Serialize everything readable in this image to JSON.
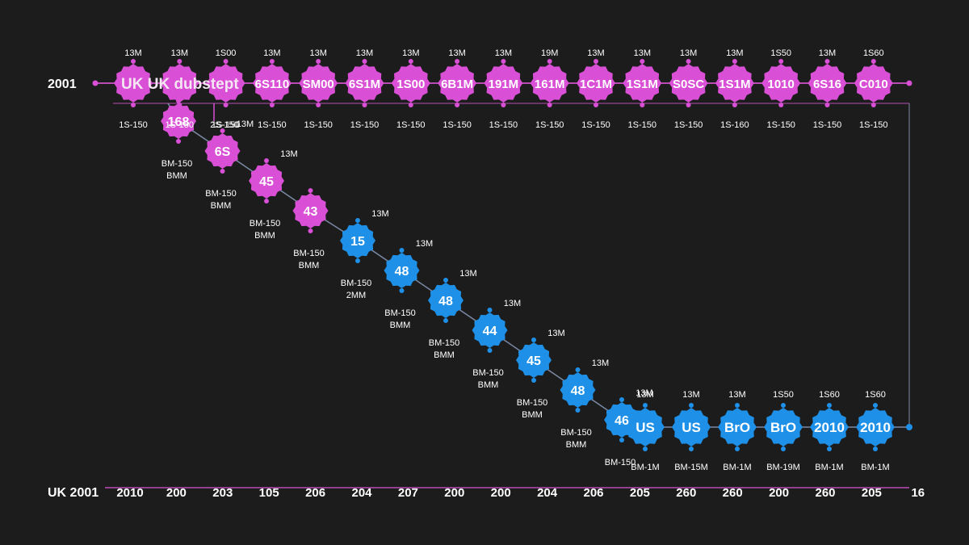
{
  "colors": {
    "background": "#1c1c1c",
    "uk": "#d94fd6",
    "us": "#1e90e8",
    "axis": "#b94bb5",
    "connector": "#7b8aa6",
    "text": "#ffffff"
  },
  "top_label": "2001",
  "bottom_label": "UK 2001",
  "title_overlay": "UK UK dubstept",
  "top_row": {
    "nodes": [
      {
        "label": "",
        "above": "13M",
        "below": "1S-150"
      },
      {
        "label": "",
        "above": "13M",
        "below": "1S-150"
      },
      {
        "label": "",
        "above": "1S00",
        "below": "1S-150"
      },
      {
        "label": "6S110",
        "above": "13M",
        "below": "1S-150"
      },
      {
        "label": "SM00",
        "above": "13M",
        "below": "1S-150"
      },
      {
        "label": "6S1M",
        "above": "13M",
        "below": "1S-150"
      },
      {
        "label": "1S00",
        "above": "13M",
        "below": "1S-150"
      },
      {
        "label": "6B1M",
        "above": "13M",
        "below": "1S-150"
      },
      {
        "label": "191M",
        "above": "13M",
        "below": "1S-150"
      },
      {
        "label": "161M",
        "above": "19M",
        "below": "1S-150"
      },
      {
        "label": "1C1M",
        "above": "13M",
        "below": "1S-150"
      },
      {
        "label": "1S1M",
        "above": "13M",
        "below": "1S-150"
      },
      {
        "label": "S0SC",
        "above": "13M",
        "below": "1S-150"
      },
      {
        "label": "1S1M",
        "above": "13M",
        "below": "1S-160"
      },
      {
        "label": "1010",
        "above": "1S50",
        "below": "1S-150"
      },
      {
        "label": "6S16",
        "above": "13M",
        "below": "1S-150"
      },
      {
        "label": "C010",
        "above": "1S60",
        "below": "1S-150"
      }
    ]
  },
  "diagonal": {
    "nodes": [
      {
        "label": "168",
        "above": "",
        "below": "BM-150",
        "below2": "BMM",
        "color": "uk"
      },
      {
        "label": "6S",
        "above": "13M",
        "below": "BM-150",
        "below2": "BMM",
        "color": "uk"
      },
      {
        "label": "45",
        "above": "13M",
        "below": "BM-150",
        "below2": "BMM",
        "color": "uk"
      },
      {
        "label": "43",
        "above": "",
        "below": "BM-150",
        "below2": "BMM",
        "color": "uk"
      },
      {
        "label": "15",
        "above": "13M",
        "below": "BM-150",
        "below2": "2MM",
        "color": "us"
      },
      {
        "label": "48",
        "above": "13M",
        "below": "BM-150",
        "below2": "BMM",
        "color": "us"
      },
      {
        "label": "48",
        "above": "13M",
        "below": "BM-150",
        "below2": "BMM",
        "color": "us"
      },
      {
        "label": "44",
        "above": "13M",
        "below": "BM-150",
        "below2": "BMM",
        "color": "us"
      },
      {
        "label": "45",
        "above": "13M",
        "below": "BM-150",
        "below2": "BMM",
        "color": "us"
      },
      {
        "label": "48",
        "above": "13M",
        "below": "BM-150",
        "below2": "BMM",
        "color": "us"
      },
      {
        "label": "46",
        "above": "13M",
        "below": "BM-150",
        "below2": "",
        "color": "us"
      }
    ],
    "small_label": "2S-150"
  },
  "bottom_row": {
    "nodes": [
      {
        "label": "US",
        "above": "13M",
        "below": "BM-1M"
      },
      {
        "label": "US",
        "above": "13M",
        "below": "BM-15M"
      },
      {
        "label": "BrO",
        "above": "13M",
        "below": "BM-1M"
      },
      {
        "label": "BrO",
        "above": "1S50",
        "below": "BM-19M"
      },
      {
        "label": "2010",
        "above": "1S60",
        "below": "BM-1M"
      },
      {
        "label": "2010",
        "above": "1S60",
        "below": "BM-1M"
      }
    ]
  },
  "x_axis": {
    "ticks": [
      "2010",
      "200",
      "203",
      "105",
      "206",
      "204",
      "207",
      "200",
      "200",
      "204",
      "206",
      "205",
      "260",
      "260",
      "200",
      "260",
      "205",
      "16"
    ]
  }
}
